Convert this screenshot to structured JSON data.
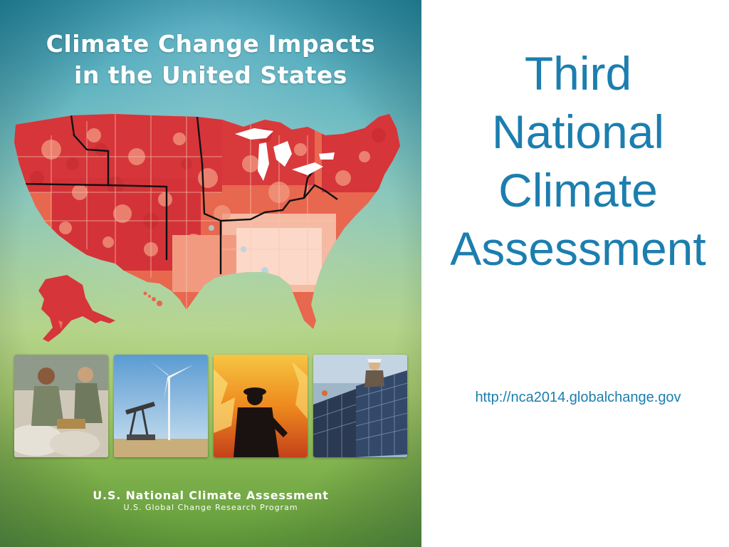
{
  "cover": {
    "title_line1": "Climate Change Impacts",
    "title_line2": "in the United States",
    "footer_main": "U.S. National Climate Assessment",
    "footer_sub": "U.S. Global Change Research Program",
    "photos": [
      {
        "subject": "sandbag-workers"
      },
      {
        "subject": "oil-pump-and-wind-turbine"
      },
      {
        "subject": "firefighter-wildfire"
      },
      {
        "subject": "solar-panel-installer"
      }
    ]
  },
  "slide": {
    "heading_line1": "Third",
    "heading_line2": "National",
    "heading_line3": "Climate",
    "heading_line4": "Assessment",
    "link_text": "http://nca2014.globalchange.gov"
  },
  "colors": {
    "heading": "#1c7eaf",
    "map_dark_red": "#d6353a",
    "map_mid_red": "#ea7560",
    "map_light": "#fbd8c8",
    "map_lake": "#ffffff"
  }
}
